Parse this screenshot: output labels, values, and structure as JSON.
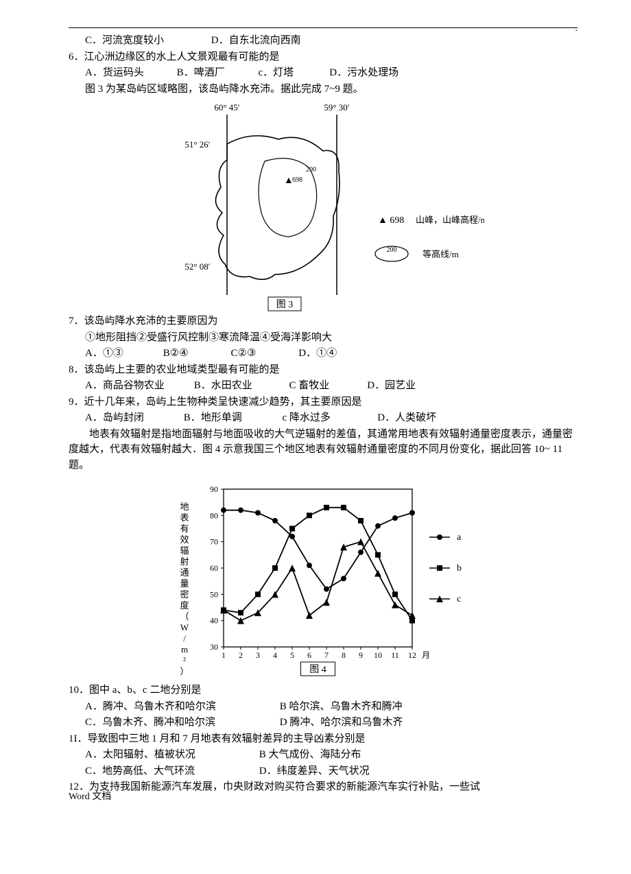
{
  "header_dot": ".",
  "q5": {
    "optC": "C．河流宽度较小",
    "optD": "D．自东北流向西南"
  },
  "q6": {
    "stem": "6．江心洲边缘区的水上人文景观最有可能的是",
    "optA": "A．货运码头",
    "optB": "B．啤酒厂",
    "optC": "c．灯塔",
    "optD": "D．污水处理场"
  },
  "fig3_intro": "图 3 为某岛屿区域略图，该岛屿降水充沛。据此完成 7~9 题。",
  "fig3": {
    "lon_left": "60° 45′",
    "lon_right": "59° 30′",
    "lat_top": "51° 26′",
    "lat_bot": "52° 08′",
    "peak_val": "698",
    "contour_val": "200",
    "legend_peak_sym": "▲ 698",
    "legend_peak_txt": "山峰，山峰高程/m",
    "legend_contour_val": "200",
    "legend_contour_txt": "等高线/m",
    "caption": "图 3"
  },
  "q7": {
    "stem": "7．该岛屿降水充沛的主要原因为",
    "sub": "①地形阻挡②受盛行风控制③寒流降温④受海洋影响大",
    "optA": "A．①③",
    "optB": "B②④",
    "optC": "C②③",
    "optD": "D．①④"
  },
  "q8": {
    "stem": "8．该岛屿上主要的农业地域类型最有可能的是",
    "optA": "A．商品谷物农业",
    "optB": "B．水田农业",
    "optC": "C 畜牧业",
    "optD": "D．园艺业"
  },
  "q9": {
    "stem": "9．近十几年来，岛屿上生物种类呈快速减少趋势，其主要原因是",
    "optA": "A．岛屿封闭",
    "optB": "B．地形单调",
    "optC": "c 降水过多",
    "optD": "D．人类破坏"
  },
  "fig4_intro": "地表有效辐射是指地面辐射与地面吸收的大气逆辐射的差值，其通常用地表有效辐射通量密度表示，通量密度越大，代表有效辐射越大．图 4 示意我国三个地区地表有效辐射通量密度的不同月份变化，据此回答 10~ 11 题。",
  "fig4": {
    "ylabel": "地表有效辐射通量密度（W/m²）",
    "xlabel_suffix": "月",
    "caption": "图 4",
    "ylim": [
      30,
      90
    ],
    "ytick_step": 10,
    "yticks": [
      30,
      40,
      50,
      60,
      70,
      80,
      90
    ],
    "xticks": [
      1,
      2,
      3,
      4,
      5,
      6,
      7,
      8,
      9,
      10,
      11,
      12
    ],
    "xlim": [
      1,
      12
    ],
    "background_color": "#ffffff",
    "grid_on": false,
    "line_width": 1.8,
    "marker_size": 5,
    "series": {
      "a": {
        "label": "a",
        "marker": "circle",
        "color": "#000000",
        "values": [
          82,
          82,
          81,
          78,
          72,
          61,
          52,
          56,
          66,
          76,
          79,
          81
        ]
      },
      "b": {
        "label": "b",
        "marker": "square",
        "color": "#000000",
        "values": [
          44,
          43,
          50,
          60,
          75,
          80,
          83,
          83,
          78,
          65,
          50,
          40
        ]
      },
      "c": {
        "label": "c",
        "marker": "triangle",
        "color": "#000000",
        "values": [
          44,
          40,
          43,
          50,
          60,
          42,
          47,
          68,
          70,
          58,
          46,
          42
        ]
      }
    }
  },
  "q10": {
    "stem": "10．图中 a、b、c 二地分别是",
    "optA": "A．腾冲、乌鲁木齐和哈尔滨",
    "optB": "B 哈尔滨、乌鲁木齐和腾冲",
    "optC": "C．乌鲁木齐、腾冲和哈尔滨",
    "optD": "D 腾冲、哈尔滨和乌鲁木齐"
  },
  "q11": {
    "stem": "1I．导致图中三地 1 月和 7 月地表有效辐射差异的主导凶素分别是",
    "optA": "A．太阳辐射、植被状况",
    "optB": "B 大气成份、海陆分布",
    "optC": "C．地势高低、大气环流",
    "optD": "D．纬度差异、天气状况"
  },
  "q12": {
    "stem": "12．为支持我国新能源汽车发展，巾央财政对购买符合要求的新能源汽车实行补贴，一些试"
  },
  "footer": "Word  文档"
}
